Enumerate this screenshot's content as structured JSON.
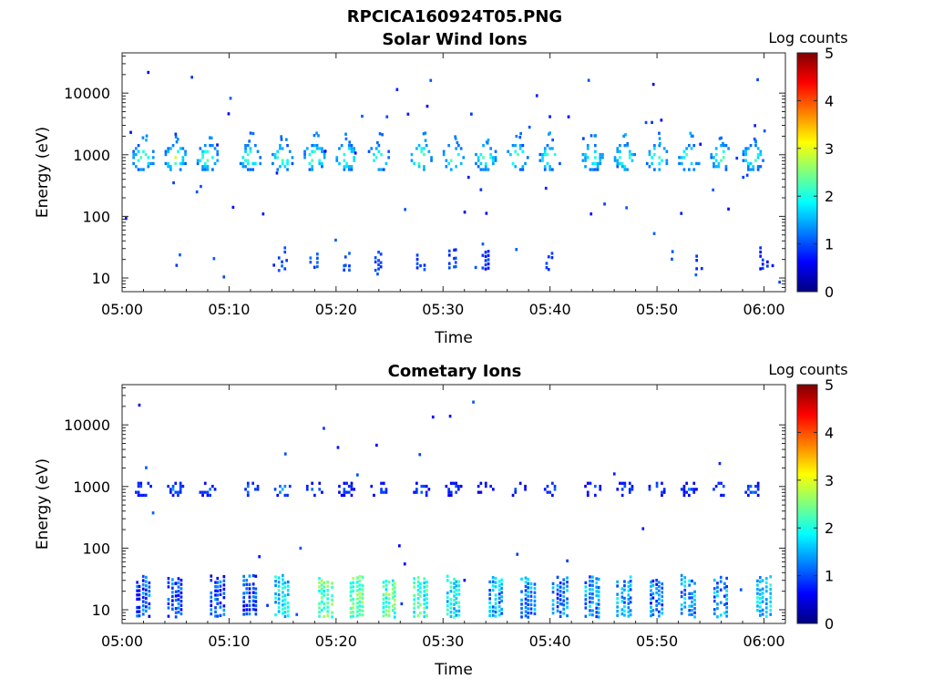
{
  "figure": {
    "title": "RPCICA160924T05.PNG"
  },
  "chart_data": [
    {
      "type": "heatmap",
      "title": "Solar Wind Ions",
      "xlabel": "Time",
      "ylabel": "Energy (eV)",
      "xlim": [
        "05:00",
        "06:02"
      ],
      "ylim": [
        6,
        45000
      ],
      "yscale": "log",
      "xticks": [
        "05:00",
        "05:10",
        "05:20",
        "05:30",
        "05:40",
        "05:50",
        "06:00"
      ],
      "yticks": [
        "10",
        "100",
        "1000",
        "10000"
      ],
      "colorbar": {
        "label": "Log counts",
        "range": [
          0,
          5
        ],
        "ticks": [
          "0",
          "1",
          "2",
          "3",
          "4",
          "5"
        ],
        "colormap": "jet"
      },
      "blobs_1000eV": [
        {
          "time": "05:02",
          "level": 2.6
        },
        {
          "time": "05:05",
          "level": 2.8
        },
        {
          "time": "05:08",
          "level": 2.6
        },
        {
          "time": "05:12",
          "level": 2.6
        },
        {
          "time": "05:15",
          "level": 2.6
        },
        {
          "time": "05:18",
          "level": 2.7
        },
        {
          "time": "05:21",
          "level": 2.6
        },
        {
          "time": "05:24",
          "level": 2.6
        },
        {
          "time": "05:28",
          "level": 2.8
        },
        {
          "time": "05:31",
          "level": 2.5
        },
        {
          "time": "05:34",
          "level": 2.6
        },
        {
          "time": "05:37",
          "level": 2.6
        },
        {
          "time": "05:40",
          "level": 2.6
        },
        {
          "time": "05:44",
          "level": 2.5
        },
        {
          "time": "05:47",
          "level": 2.6
        },
        {
          "time": "05:50",
          "level": 2.6
        },
        {
          "time": "05:53",
          "level": 2.5
        },
        {
          "time": "05:56",
          "level": 2.5
        },
        {
          "time": "05:59",
          "level": 2.5
        }
      ],
      "low_energy_events": [
        {
          "time": "05:15",
          "level": 1.0
        },
        {
          "time": "05:18",
          "level": 1.0
        },
        {
          "time": "05:21",
          "level": 1.0
        },
        {
          "time": "05:24",
          "level": 0.9
        },
        {
          "time": "05:28",
          "level": 0.9
        },
        {
          "time": "05:31",
          "level": 0.9
        },
        {
          "time": "05:34",
          "level": 0.8
        },
        {
          "time": "05:40",
          "level": 0.8
        },
        {
          "time": "05:54",
          "level": 0.8
        },
        {
          "time": "06:00",
          "level": 0.8
        }
      ]
    },
    {
      "type": "heatmap",
      "title": "Cometary Ions",
      "xlabel": "Time",
      "ylabel": "Energy (eV)",
      "xlim": [
        "05:00",
        "06:02"
      ],
      "ylim": [
        6,
        45000
      ],
      "yscale": "log",
      "xticks": [
        "05:00",
        "05:10",
        "05:20",
        "05:30",
        "05:40",
        "05:50",
        "06:00"
      ],
      "yticks": [
        "10",
        "100",
        "1000",
        "10000"
      ],
      "colorbar": {
        "label": "Log counts",
        "range": [
          0,
          5
        ],
        "ticks": [
          "0",
          "1",
          "2",
          "3",
          "4",
          "5"
        ],
        "colormap": "jet"
      },
      "blobs_1000eV": [
        {
          "time": "05:02",
          "level": 1.5
        },
        {
          "time": "05:05",
          "level": 1.4
        },
        {
          "time": "05:08",
          "level": 1.4
        },
        {
          "time": "05:12",
          "level": 1.4
        },
        {
          "time": "05:15",
          "level": 1.5
        },
        {
          "time": "05:18",
          "level": 1.2
        },
        {
          "time": "05:21",
          "level": 1.2
        },
        {
          "time": "05:24",
          "level": 1.3
        },
        {
          "time": "05:28",
          "level": 1.2
        },
        {
          "time": "05:31",
          "level": 1.1
        },
        {
          "time": "05:34",
          "level": 1.0
        },
        {
          "time": "05:37",
          "level": 1.3
        },
        {
          "time": "05:40",
          "level": 1.3
        },
        {
          "time": "05:44",
          "level": 1.3
        },
        {
          "time": "05:47",
          "level": 1.3
        },
        {
          "time": "05:50",
          "level": 1.3
        },
        {
          "time": "05:53",
          "level": 1.3
        },
        {
          "time": "05:56",
          "level": 1.3
        },
        {
          "time": "05:59",
          "level": 1.3
        }
      ],
      "low_energy_events": [
        {
          "time": "05:02",
          "level": 1.0
        },
        {
          "time": "05:05",
          "level": 1.0
        },
        {
          "time": "05:09",
          "level": 0.9
        },
        {
          "time": "05:12",
          "level": 0.9
        },
        {
          "time": "05:15",
          "level": 1.7
        },
        {
          "time": "05:19",
          "level": 2.2
        },
        {
          "time": "05:22",
          "level": 2.3
        },
        {
          "time": "05:25",
          "level": 2.2
        },
        {
          "time": "05:28",
          "level": 2.1
        },
        {
          "time": "05:31",
          "level": 1.8
        },
        {
          "time": "05:35",
          "level": 1.4
        },
        {
          "time": "05:38",
          "level": 1.3
        },
        {
          "time": "05:41",
          "level": 1.2
        },
        {
          "time": "05:44",
          "level": 1.3
        },
        {
          "time": "05:47",
          "level": 1.4
        },
        {
          "time": "05:50",
          "level": 1.1
        },
        {
          "time": "05:53",
          "level": 1.4
        },
        {
          "time": "05:56",
          "level": 1.3
        },
        {
          "time": "06:00",
          "level": 1.6
        }
      ]
    }
  ]
}
